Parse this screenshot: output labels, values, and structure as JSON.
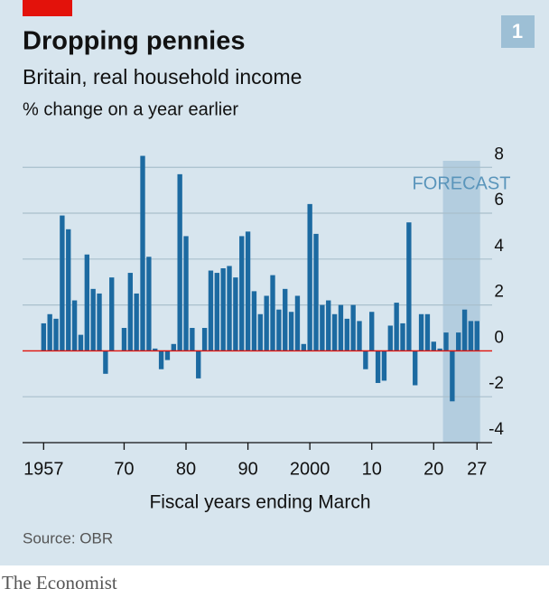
{
  "chart_data": {
    "type": "bar",
    "badge": "1",
    "title": "Dropping pennies",
    "subtitle": "Britain, real household income",
    "unit_label": "% change on a year earlier",
    "x_label": "Fiscal years ending March",
    "source": "Source: OBR",
    "brand": "The Economist",
    "forecast_label": "FORECAST",
    "forecast_span": [
      2021.5,
      2027.5
    ],
    "color": "#1c6aa1",
    "x": [
      1957,
      1958,
      1959,
      1960,
      1961,
      1962,
      1963,
      1964,
      1965,
      1966,
      1967,
      1968,
      1969,
      1970,
      1971,
      1972,
      1973,
      1974,
      1975,
      1976,
      1977,
      1978,
      1979,
      1980,
      1981,
      1982,
      1983,
      1984,
      1985,
      1986,
      1987,
      1988,
      1989,
      1990,
      1991,
      1992,
      1993,
      1994,
      1995,
      1996,
      1997,
      1998,
      1999,
      2000,
      2001,
      2002,
      2003,
      2004,
      2005,
      2006,
      2007,
      2008,
      2009,
      2010,
      2011,
      2012,
      2013,
      2014,
      2015,
      2016,
      2017,
      2018,
      2019,
      2020,
      2021,
      2022,
      2023,
      2024,
      2025,
      2026,
      2027
    ],
    "values": [
      1.2,
      1.6,
      1.4,
      5.9,
      5.3,
      2.2,
      0.7,
      4.2,
      2.7,
      2.5,
      -1.0,
      3.2,
      0,
      1.0,
      3.4,
      2.5,
      8.5,
      4.1,
      0.1,
      -0.8,
      -0.4,
      0.3,
      7.7,
      5.0,
      1.0,
      -1.2,
      1.0,
      3.5,
      3.4,
      3.6,
      3.7,
      3.2,
      5.0,
      5.2,
      2.6,
      1.6,
      2.4,
      3.3,
      1.8,
      2.7,
      1.7,
      2.4,
      0.3,
      6.4,
      5.1,
      2.0,
      2.2,
      1.6,
      2.0,
      1.4,
      2.0,
      1.3,
      -0.8,
      1.7,
      -1.4,
      -1.3,
      1.1,
      2.1,
      1.2,
      5.6,
      -1.5,
      1.6,
      1.6,
      0.4,
      0.1,
      0.8,
      -2.2,
      0.8,
      1.8,
      1.3,
      1.3
    ],
    "xlim": [
      1953.6,
      2036
    ],
    "xticks": [
      1957,
      {
        "value": 1970,
        "label": "70"
      },
      {
        "value": 1980,
        "label": "80"
      },
      {
        "value": 1990,
        "label": "90"
      },
      2000,
      {
        "value": 2010,
        "label": "10"
      },
      {
        "value": 2020,
        "label": "20"
      },
      {
        "value": 2027,
        "label": "27"
      }
    ],
    "ylim": [
      -4,
      8.6
    ],
    "yticks": [
      -4,
      -2,
      0,
      2,
      4,
      6,
      8
    ],
    "grid": true
  }
}
